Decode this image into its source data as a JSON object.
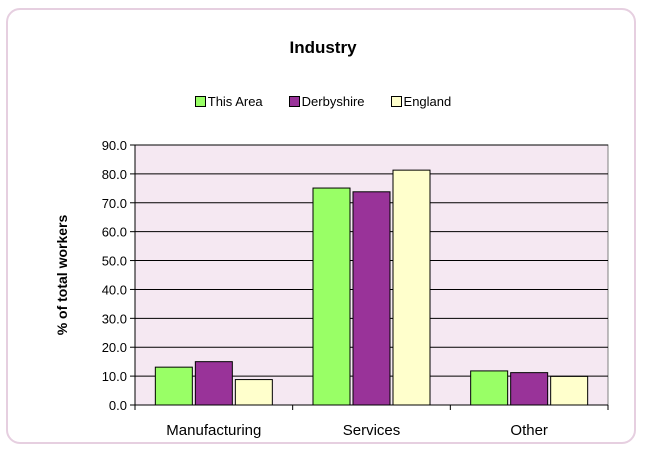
{
  "chart_data": {
    "type": "bar",
    "title": "Industry",
    "xlabel": "",
    "ylabel": "% of total workers",
    "categories": [
      "Manufacturing",
      "Services",
      "Other"
    ],
    "series": [
      {
        "name": "This Area",
        "color": "#99ff66",
        "values": [
          13.1,
          75.1,
          11.8
        ]
      },
      {
        "name": "Derbyshire",
        "color": "#993399",
        "values": [
          15.0,
          73.8,
          11.2
        ]
      },
      {
        "name": "England",
        "color": "#ffffcc",
        "values": [
          8.8,
          81.3,
          9.9
        ]
      }
    ],
    "ylim": [
      0,
      90
    ],
    "yticks": [
      "0.0",
      "10.0",
      "20.0",
      "30.0",
      "40.0",
      "50.0",
      "60.0",
      "70.0",
      "80.0",
      "90.0"
    ],
    "grid": true,
    "plot_background": "#f5e8f2",
    "legend_position": "top"
  }
}
